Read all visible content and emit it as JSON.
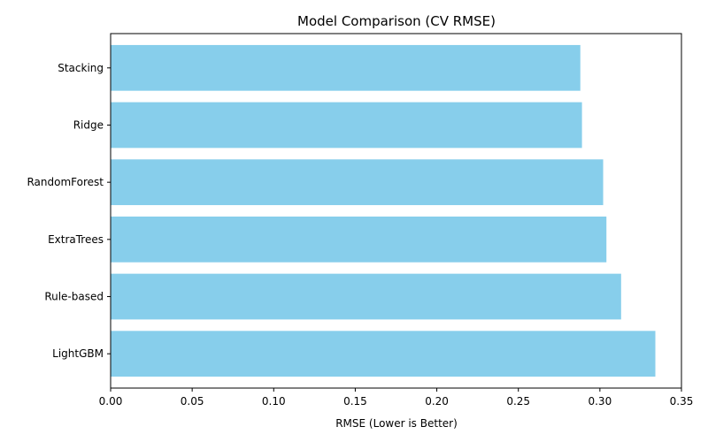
{
  "chart_data": {
    "type": "bar",
    "orientation": "horizontal",
    "title": "Model Comparison (CV RMSE)",
    "xlabel": "RMSE (Lower is Better)",
    "ylabel": "",
    "categories": [
      "Stacking",
      "Ridge",
      "RandomForest",
      "ExtraTrees",
      "Rule-based",
      "LightGBM"
    ],
    "values": [
      0.288,
      0.289,
      0.302,
      0.304,
      0.313,
      0.334
    ],
    "xlim": [
      0,
      0.35
    ],
    "xticks": [
      0.0,
      0.05,
      0.1,
      0.15,
      0.2,
      0.25,
      0.3,
      0.35
    ],
    "xtick_labels": [
      "0.00",
      "0.05",
      "0.10",
      "0.15",
      "0.20",
      "0.25",
      "0.30",
      "0.35"
    ],
    "bar_color": "#87CEEB",
    "grid": false,
    "legend": "none"
  }
}
